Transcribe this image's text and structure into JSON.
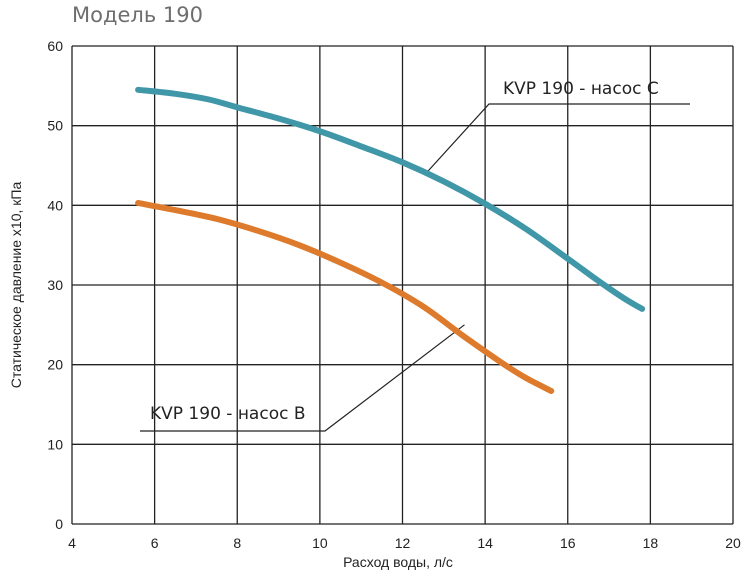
{
  "chart_data": {
    "type": "line",
    "title": "Модель 190",
    "xlabel": "Расход воды, л/с",
    "ylabel": "Статическое давление х10, кПа",
    "xlim": [
      4,
      20
    ],
    "ylim": [
      0,
      60
    ],
    "xticks": [
      4,
      6,
      8,
      10,
      12,
      14,
      16,
      18,
      20
    ],
    "yticks": [
      0,
      10,
      20,
      30,
      40,
      50,
      60
    ],
    "grid": true,
    "series": [
      {
        "name": "KVP 190 - насос С",
        "color": "#3f97a8",
        "x": [
          5.6,
          6.5,
          7.3,
          8.0,
          9.0,
          10.0,
          11.0,
          12.0,
          13.0,
          14.0,
          15.0,
          16.0,
          16.8,
          17.4,
          17.8
        ],
        "y": [
          54.5,
          54.0,
          53.3,
          52.3,
          50.9,
          49.3,
          47.4,
          45.4,
          43.0,
          40.2,
          37.0,
          33.3,
          30.3,
          28.2,
          27.0
        ]
      },
      {
        "name": "KVP 190 - насос В",
        "color": "#dd7a2c",
        "x": [
          5.6,
          6.5,
          7.5,
          8.5,
          9.5,
          10.5,
          11.5,
          12.5,
          13.5,
          14.5,
          15.0,
          15.6
        ],
        "y": [
          40.3,
          39.4,
          38.3,
          36.8,
          35.0,
          32.8,
          30.3,
          27.3,
          23.5,
          19.9,
          18.3,
          16.7
        ]
      }
    ],
    "annotations": [
      {
        "text": "KVP 190 - насос С",
        "series": 0,
        "anchor_x": 12.6,
        "anchor_y": 44.2
      },
      {
        "text": "KVP 190 - насос В",
        "series": 1,
        "anchor_x": 13.5,
        "anchor_y": 25.0
      }
    ]
  }
}
